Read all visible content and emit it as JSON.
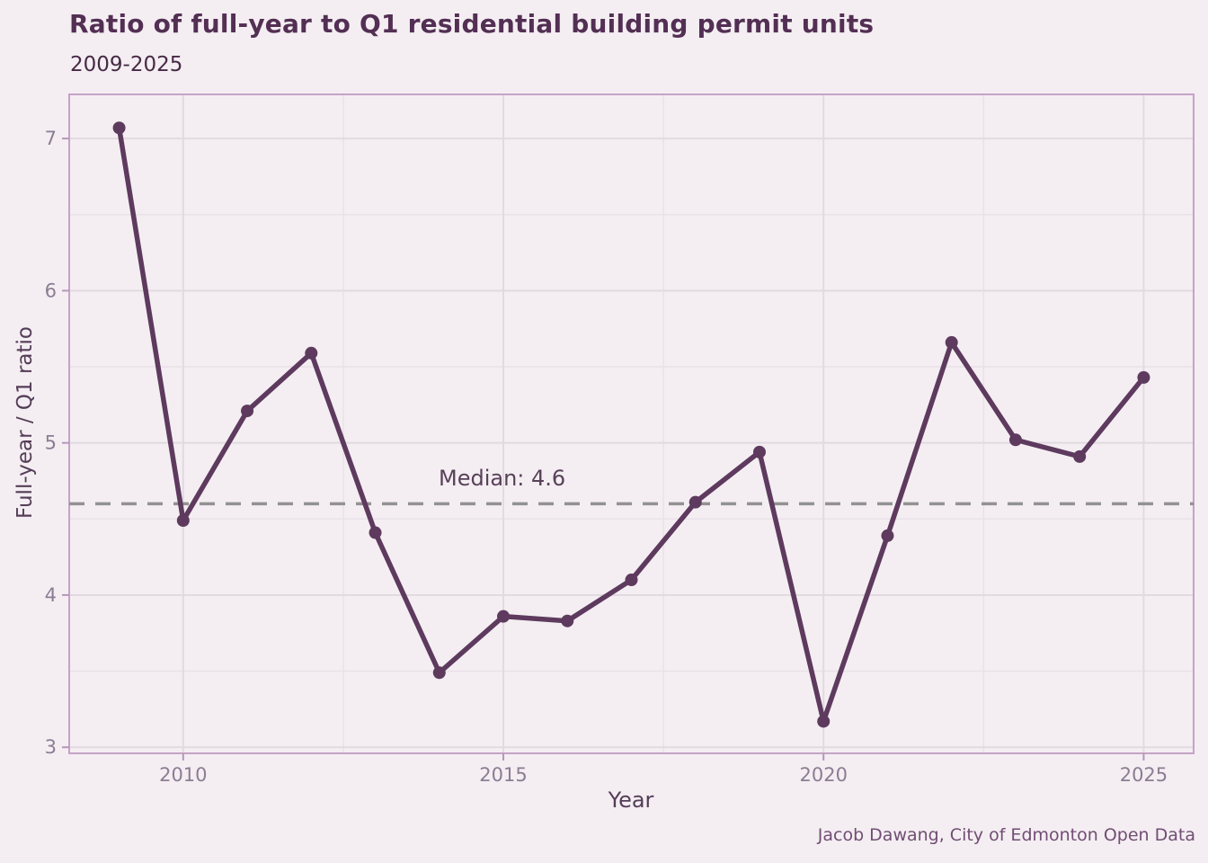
{
  "header": {
    "title": "Ratio of full-year to Q1 residential building permit units",
    "subtitle": "2009-2025"
  },
  "caption": "Jacob Dawang, City of Edmonton Open Data",
  "annotation": {
    "median_label": "Median: 4.6"
  },
  "colors": {
    "background": "#f4eef2",
    "line": "#5d3a5e",
    "point": "#5d3a5e",
    "median_line": "#929292",
    "panel_border": "#c5a3c6",
    "grid_major": "#e2d9e1",
    "grid_minor": "#e9e1e8",
    "tick_mark": "#b697b8",
    "tick_label": "#8b7d93",
    "title": "#532f54",
    "subtitle": "#472a46",
    "axis_title": "#543d57",
    "caption": "#714d73",
    "annotation": "#584158"
  },
  "chart_data": {
    "type": "line",
    "title": "Ratio of full-year to Q1 residential building permit units",
    "subtitle": "2009-2025",
    "xlabel": "Year",
    "ylabel": "Full-year / Q1 ratio",
    "x": [
      2009,
      2010,
      2011,
      2012,
      2013,
      2014,
      2015,
      2016,
      2017,
      2018,
      2019,
      2020,
      2021,
      2022,
      2023,
      2024,
      2025
    ],
    "values": [
      7.07,
      4.49,
      5.21,
      5.59,
      4.41,
      3.49,
      3.86,
      3.83,
      4.1,
      4.61,
      4.94,
      3.17,
      4.39,
      5.66,
      5.02,
      4.91,
      5.43
    ],
    "median": 4.6,
    "xticks": [
      2010,
      2015,
      2020,
      2025
    ],
    "yticks": [
      3,
      4,
      5,
      6,
      7
    ],
    "x_minor": [
      2012.5,
      2017.5,
      2022.5
    ],
    "y_minor": [
      3.5,
      4.5,
      5.5,
      6.5
    ],
    "xlim": [
      2008.22,
      2025.78
    ],
    "ylim": [
      2.96,
      7.29
    ],
    "grid": true,
    "legend": false
  }
}
